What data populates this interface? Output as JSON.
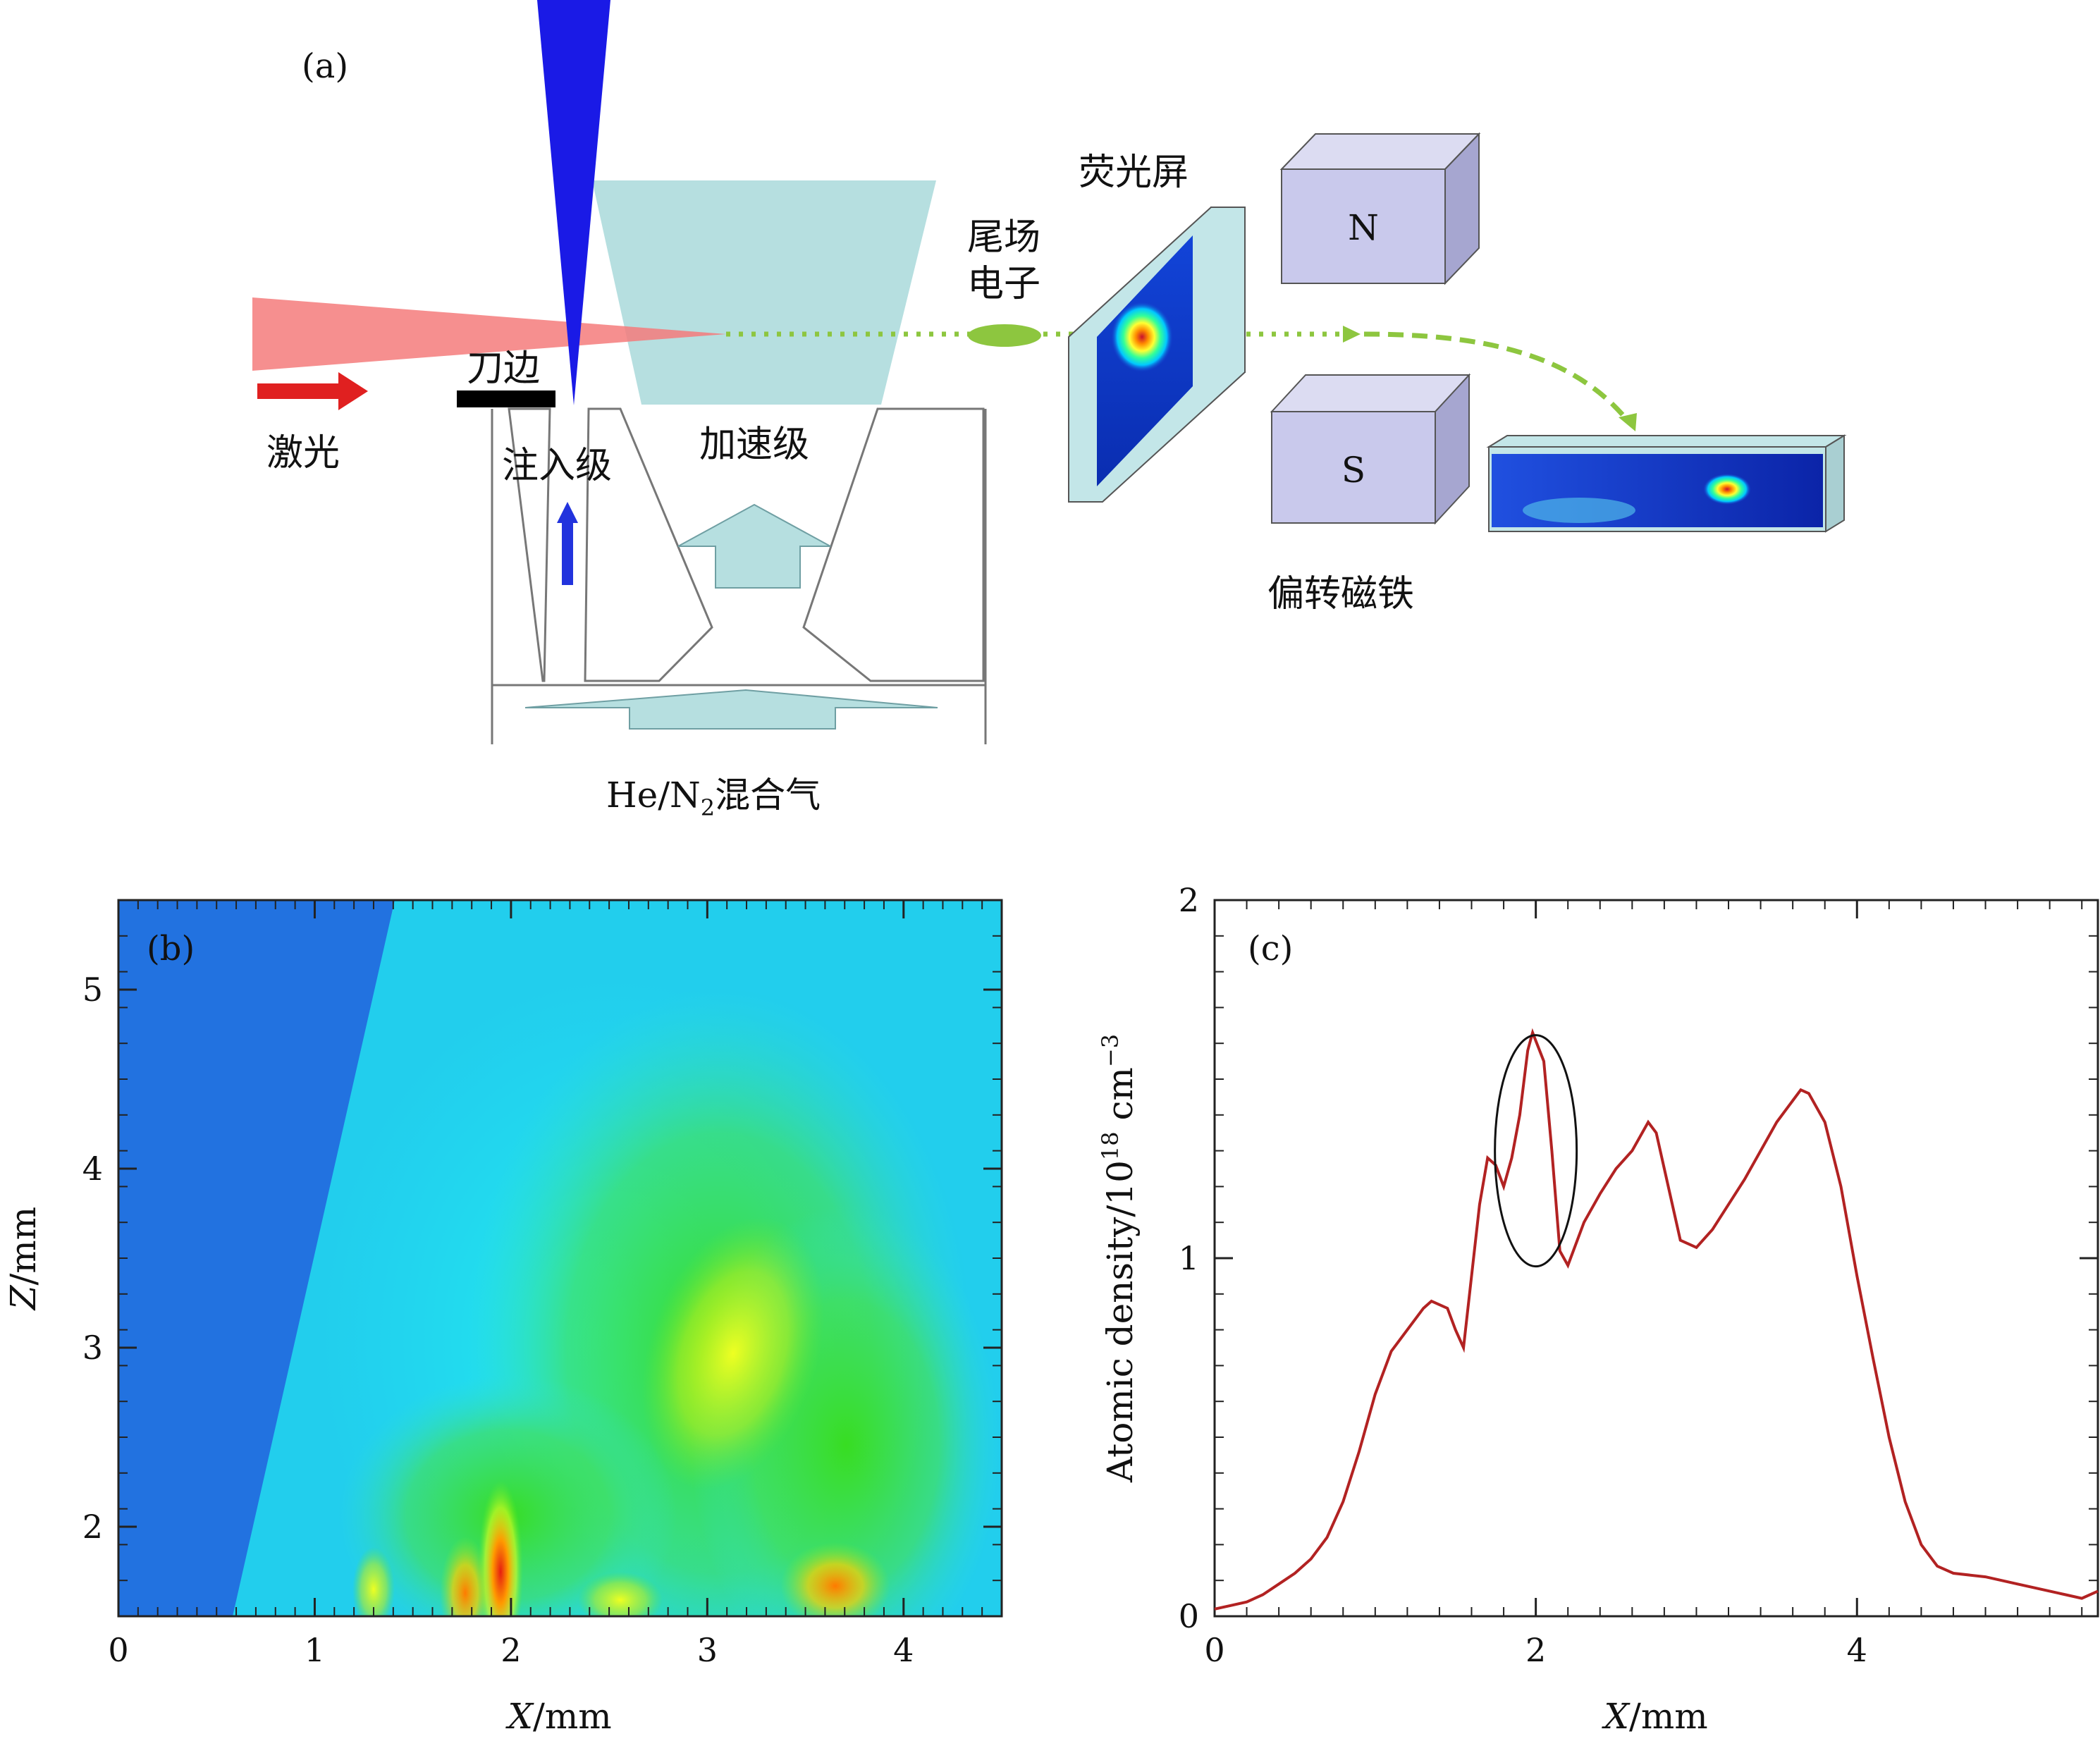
{
  "panel_a": {
    "label": "(a)",
    "laser_label": "激光",
    "knife_edge_label": "刀边",
    "injection_label": "注入级",
    "acceleration_label": "加速级",
    "wake_label_line1": "尾场",
    "wake_label_line2": "电子",
    "screen_label": "荧光屏",
    "magnet_n": "N",
    "magnet_s": "S",
    "magnet_label": "偏转磁铁",
    "gas_prefix": "He/N",
    "gas_subscript": "2",
    "gas_suffix": "混合气",
    "colors": {
      "laser": "#f47b7b",
      "arrow_red": "#e02020",
      "probe_blue": "#1a1ae6",
      "cell_fill": "#b6dfe0",
      "electron_green": "#8dc63f",
      "magnet_face": "#c9c9ec",
      "magnet_side": "#a6a6d0"
    }
  },
  "chart_data": [
    {
      "type": "heatmap",
      "panel": "(b)",
      "xlabel_var": "X",
      "xlabel_unit": "/mm",
      "ylabel_var": "Z",
      "ylabel_unit": "/mm",
      "xlim": [
        0,
        4.5
      ],
      "ylim": [
        1.5,
        5.5
      ],
      "x_ticks": [
        "0",
        "1",
        "2",
        "3",
        "4"
      ],
      "y_ticks": [
        "2",
        "3",
        "4",
        "5"
      ],
      "colormap": "jet"
    },
    {
      "type": "line",
      "panel": "(c)",
      "xlabel_var": "X",
      "xlabel_unit": "/mm",
      "ylabel_prefix": "Atomic density/10",
      "ylabel_exp": "18",
      "ylabel_unit": " cm",
      "ylabel_unit_exp": "−3",
      "xlim": [
        0,
        5.5
      ],
      "ylim": [
        0,
        2
      ],
      "x_ticks": [
        "0",
        "2",
        "4"
      ],
      "y_ticks": [
        "0",
        "1",
        "2"
      ],
      "line_color": "#b22222",
      "annotation": {
        "type": "ellipse",
        "center_x": 2.0,
        "center_y": 1.3
      },
      "series": [
        {
          "x": [
            0.0,
            0.1,
            0.2,
            0.3,
            0.4,
            0.5,
            0.6,
            0.7,
            0.8,
            0.9,
            1.0,
            1.1,
            1.2,
            1.3,
            1.35,
            1.45,
            1.5,
            1.55,
            1.6,
            1.65,
            1.7,
            1.75,
            1.8,
            1.85,
            1.9,
            1.95,
            1.98,
            2.05,
            2.1,
            2.15,
            2.2,
            2.3,
            2.4,
            2.5,
            2.6,
            2.7,
            2.75,
            2.8,
            2.9,
            3.0,
            3.1,
            3.2,
            3.3,
            3.4,
            3.5,
            3.6,
            3.65,
            3.7,
            3.8,
            3.9,
            4.0,
            4.1,
            4.2,
            4.3,
            4.4,
            4.5,
            4.6,
            4.8,
            5.0,
            5.2,
            5.3,
            5.4,
            5.5
          ],
          "y": [
            0.02,
            0.03,
            0.04,
            0.06,
            0.09,
            0.12,
            0.16,
            0.22,
            0.32,
            0.46,
            0.62,
            0.74,
            0.8,
            0.86,
            0.88,
            0.86,
            0.8,
            0.75,
            0.95,
            1.15,
            1.28,
            1.26,
            1.2,
            1.28,
            1.4,
            1.58,
            1.63,
            1.55,
            1.3,
            1.02,
            0.98,
            1.1,
            1.18,
            1.25,
            1.3,
            1.38,
            1.35,
            1.25,
            1.05,
            1.03,
            1.08,
            1.15,
            1.22,
            1.3,
            1.38,
            1.44,
            1.47,
            1.46,
            1.38,
            1.2,
            0.95,
            0.72,
            0.5,
            0.32,
            0.2,
            0.14,
            0.12,
            0.11,
            0.09,
            0.07,
            0.06,
            0.05,
            0.07
          ]
        }
      ]
    }
  ]
}
